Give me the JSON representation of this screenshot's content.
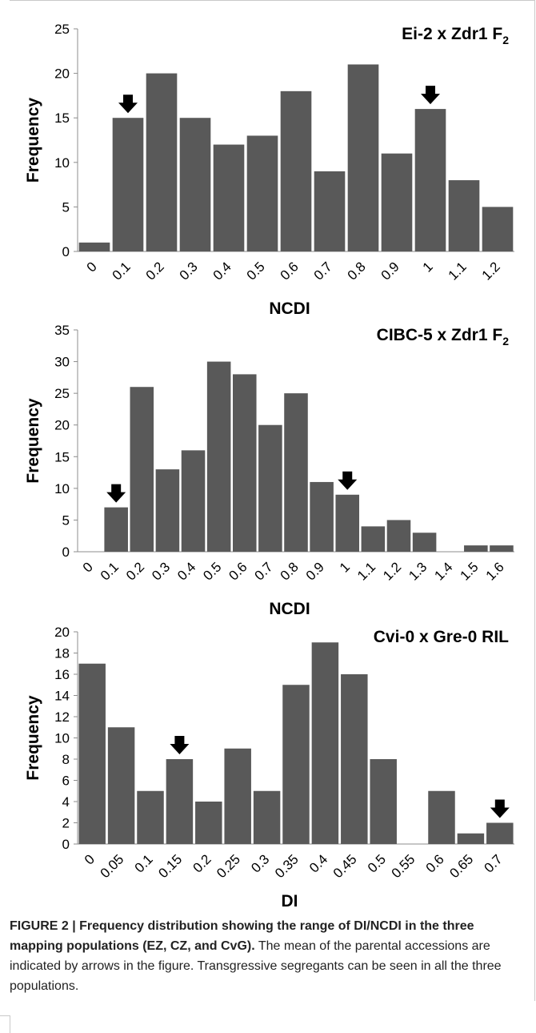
{
  "colors": {
    "bar": "#595959",
    "axis": "#8c8c8c",
    "text": "#000000"
  },
  "chart_data": [
    {
      "type": "bar",
      "title": "Ei-2 x Zdr1 F",
      "title_sub": "2",
      "xlabel": "NCDI",
      "ylabel": "Frequency",
      "ylim": [
        0,
        25
      ],
      "yticks": [
        "0",
        "5",
        "10",
        "15",
        "20",
        "25"
      ],
      "categories": [
        "0",
        "0.1",
        "0.2",
        "0.3",
        "0.4",
        "0.5",
        "0.6",
        "0.7",
        "0.8",
        "0.9",
        "1",
        "1.1",
        "1.2"
      ],
      "values": [
        1,
        15,
        20,
        15,
        12,
        13,
        18,
        9,
        21,
        11,
        16,
        8,
        5
      ],
      "arrows_at": [
        "0.1",
        "1"
      ],
      "grid": false,
      "legend": "none"
    },
    {
      "type": "bar",
      "title": "CIBC-5 x Zdr1 F",
      "title_sub": "2",
      "xlabel": "NCDI",
      "ylabel": "Frequency",
      "ylim": [
        0,
        35
      ],
      "yticks": [
        "0",
        "5",
        "10",
        "15",
        "20",
        "25",
        "30",
        "35"
      ],
      "categories": [
        "0",
        "0.1",
        "0.2",
        "0.3",
        "0.4",
        "0.5",
        "0.6",
        "0.7",
        "0.8",
        "0.9",
        "1",
        "1.1",
        "1.2",
        "1.3",
        "1.4",
        "1.5",
        "1.6"
      ],
      "values": [
        0,
        7,
        26,
        13,
        16,
        30,
        28,
        20,
        25,
        11,
        9,
        4,
        5,
        3,
        0,
        1,
        1
      ],
      "arrows_at": [
        "0.1",
        "1"
      ],
      "grid": false,
      "legend": "none"
    },
    {
      "type": "bar",
      "title": "Cvi-0 x Gre-0 RIL",
      "title_sub": "",
      "xlabel": "DI",
      "ylabel": "Frequency",
      "ylim": [
        0,
        20
      ],
      "yticks": [
        "0",
        "2",
        "4",
        "6",
        "8",
        "10",
        "12",
        "14",
        "16",
        "18",
        "20"
      ],
      "categories": [
        "0",
        "0.05",
        "0.1",
        "0.15",
        "0.2",
        "0.25",
        "0.3",
        "0.35",
        "0.4",
        "0.45",
        "0.5",
        "0.55",
        "0.6",
        "0.65",
        "0.7"
      ],
      "values": [
        17,
        11,
        5,
        8,
        4,
        9,
        5,
        15,
        19,
        16,
        8,
        0,
        5,
        1,
        2
      ],
      "arrows_at": [
        "0.15",
        "0.7"
      ],
      "grid": false,
      "legend": "none"
    }
  ],
  "caption": {
    "bold": "FIGURE 2 | Frequency distribution showing the range of DI/NCDI in the three mapping populations (EZ, CZ, and CvG).",
    "text": " The mean of the parental accessions are indicated by arrows in the figure. Transgressive segregants can be seen in all the three populations."
  }
}
